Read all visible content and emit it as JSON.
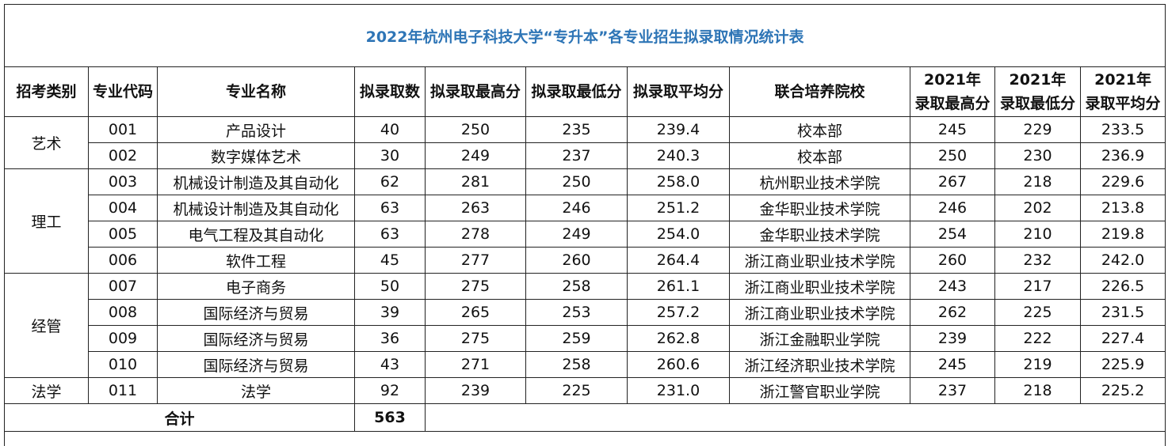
{
  "title": "2022年杭州电子科技大学“专升本”各专业招生拟录取情况统计表",
  "table": {
    "headers": [
      "招考类别",
      "专业代码",
      "专业名称",
      "拟录取数",
      "拟录取最高分",
      "拟录取最低分",
      "拟录取平均分",
      "联合培养院校"
    ],
    "headers_2021": {
      "year": "2021年",
      "labels": [
        "录取最高分",
        "录取最低分",
        "录取平均分"
      ]
    },
    "groups": [
      {
        "category": "艺术",
        "rows": [
          [
            "001",
            "产品设计",
            "40",
            "250",
            "235",
            "239.4",
            "校本部",
            "245",
            "229",
            "233.5"
          ],
          [
            "002",
            "数字媒体艺术",
            "30",
            "249",
            "237",
            "240.3",
            "校本部",
            "250",
            "230",
            "236.9"
          ]
        ]
      },
      {
        "category": "理工",
        "rows": [
          [
            "003",
            "机械设计制造及其自动化",
            "62",
            "281",
            "250",
            "258.0",
            "杭州职业技术学院",
            "267",
            "218",
            "229.6"
          ],
          [
            "004",
            "机械设计制造及其自动化",
            "63",
            "263",
            "246",
            "251.2",
            "金华职业技术学院",
            "246",
            "202",
            "213.8"
          ],
          [
            "005",
            "电气工程及其自动化",
            "63",
            "278",
            "249",
            "254.0",
            "金华职业技术学院",
            "254",
            "210",
            "219.8"
          ],
          [
            "006",
            "软件工程",
            "45",
            "277",
            "260",
            "264.4",
            "浙江商业职业技术学院",
            "260",
            "232",
            "242.0"
          ]
        ]
      },
      {
        "category": "经管",
        "rows": [
          [
            "007",
            "电子商务",
            "50",
            "275",
            "258",
            "261.1",
            "浙江商业职业技术学院",
            "243",
            "217",
            "226.5"
          ],
          [
            "008",
            "国际经济与贸易",
            "39",
            "265",
            "253",
            "257.2",
            "浙江商业职业技术学院",
            "262",
            "225",
            "231.5"
          ],
          [
            "009",
            "国际经济与贸易",
            "36",
            "275",
            "259",
            "262.8",
            "浙江金融职业学院",
            "239",
            "222",
            "227.4"
          ],
          [
            "010",
            "国际经济与贸易",
            "43",
            "271",
            "258",
            "260.6",
            "浙江经济职业技术学院",
            "245",
            "219",
            "225.9"
          ]
        ]
      },
      {
        "category": "法学",
        "rows": [
          [
            "011",
            "法学",
            "92",
            "239",
            "225",
            "231.0",
            "浙江警官职业学院",
            "237",
            "218",
            "225.2"
          ]
        ]
      }
    ],
    "total": {
      "label": "合计",
      "value": "563"
    }
  }
}
